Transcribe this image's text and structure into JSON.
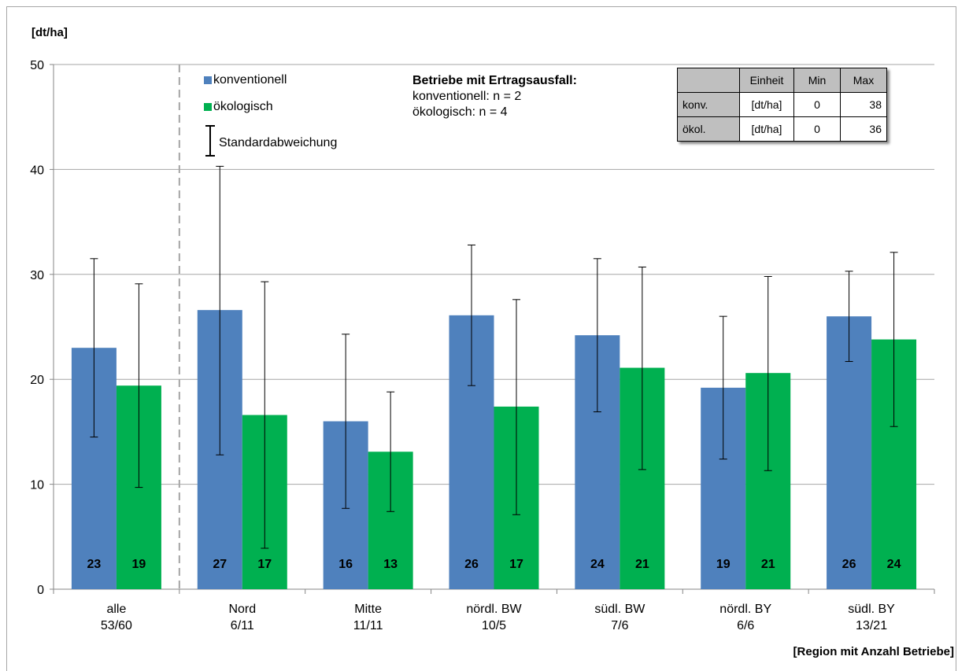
{
  "chart_data": {
    "type": "bar",
    "y_axis_label": "[dt/ha]",
    "x_axis_label": "[Region mit Anzahl Betriebe]",
    "ylim": [
      0,
      50
    ],
    "yticks": [
      0,
      10,
      20,
      30,
      40,
      50
    ],
    "grid": true,
    "categories": [
      {
        "name": "alle",
        "counts": "53/60"
      },
      {
        "name": "Nord",
        "counts": "6/11"
      },
      {
        "name": "Mitte",
        "counts": "11/11"
      },
      {
        "name": "nördl. BW",
        "counts": "10/5"
      },
      {
        "name": "südl. BW",
        "counts": "7/6"
      },
      {
        "name": "nördl. BY",
        "counts": "6/6"
      },
      {
        "name": "südl. BY",
        "counts": "13/21"
      }
    ],
    "series": [
      {
        "name": "konventionell",
        "color": "#4f81bd",
        "values": [
          23.0,
          26.6,
          16.0,
          26.1,
          24.2,
          19.2,
          26.0
        ],
        "labels": [
          "23",
          "27",
          "16",
          "26",
          "24",
          "19",
          "26"
        ],
        "error_low": [
          14.5,
          12.8,
          7.7,
          19.4,
          16.9,
          12.4,
          21.7
        ],
        "error_high": [
          31.5,
          40.3,
          24.3,
          32.8,
          31.5,
          26.0,
          30.3
        ]
      },
      {
        "name": "ökologisch",
        "color": "#00b050",
        "values": [
          19.4,
          16.6,
          13.1,
          17.4,
          21.1,
          20.6,
          23.8
        ],
        "labels": [
          "19",
          "17",
          "13",
          "17",
          "21",
          "21",
          "24"
        ],
        "error_low": [
          9.7,
          3.9,
          7.4,
          7.1,
          11.4,
          11.3,
          15.5
        ],
        "error_high": [
          29.1,
          29.3,
          18.8,
          27.6,
          30.7,
          29.8,
          32.1
        ]
      }
    ],
    "legend": {
      "placement": "top-left",
      "error_bar_label": "Standardabweichung"
    }
  },
  "note": {
    "title": "Betriebe mit Ertragsausfall:",
    "lines": [
      "konventionell: n = 2",
      "ökologisch: n = 4"
    ]
  },
  "info_table": {
    "headers": [
      "",
      "Einheit",
      "Min",
      "Max"
    ],
    "rows": [
      [
        "konv.",
        "[dt/ha]",
        "0",
        "38"
      ],
      [
        "ökol.",
        "[dt/ha]",
        "0",
        "36"
      ]
    ]
  }
}
